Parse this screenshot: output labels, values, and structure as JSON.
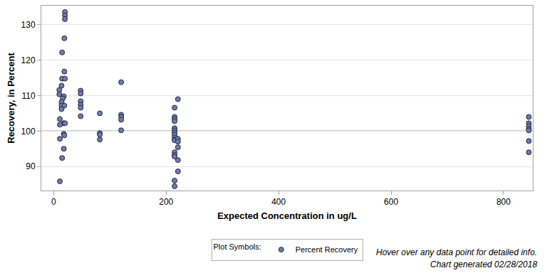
{
  "chart_data": {
    "type": "scatter",
    "x_label": "Expected Concentration in ug/L",
    "y_label": "Recovery, in Percent",
    "xlim": [
      -22,
      852
    ],
    "ylim": [
      83.2,
      135.4
    ],
    "xticks": [
      0,
      200,
      400,
      600,
      800
    ],
    "yticks": [
      90,
      100,
      110,
      120,
      130
    ],
    "grid": "y",
    "reference_line": 100,
    "legend": "bottom",
    "legend_title": "Plot Symbols:",
    "annotations": [
      "Hover over any data point for detailed info.",
      "Chart generated 02/28/2018"
    ],
    "series": [
      {
        "name": "Percent Recovery",
        "color": "#6b7bb0",
        "marker": "circle",
        "x": [
          20,
          20,
          20,
          19,
          15,
          19,
          15,
          20,
          14,
          10,
          10,
          18,
          16,
          14,
          14,
          19,
          14,
          11,
          18,
          20,
          11,
          18,
          19,
          11,
          18,
          15,
          11,
          48,
          48,
          48,
          48,
          48,
          48,
          82,
          82,
          82,
          82,
          120,
          120,
          120,
          120,
          120,
          215,
          215,
          215,
          215,
          215,
          215,
          215,
          215,
          215,
          215,
          215,
          215,
          215,
          215,
          215,
          215,
          221,
          221,
          221,
          221,
          221,
          221,
          845,
          845,
          845,
          845,
          845,
          845,
          845
        ],
        "values": [
          133.6,
          132.6,
          131.6,
          126.2,
          122.2,
          116.8,
          114.8,
          114.8,
          112.8,
          111.6,
          110.4,
          109.8,
          109.2,
          108.2,
          107.2,
          107.2,
          106.2,
          103.4,
          102.2,
          102.2,
          101.8,
          99.2,
          98.8,
          97.8,
          95.0,
          92.4,
          85.8,
          111.4,
          110.6,
          108.4,
          107.4,
          106.6,
          104.2,
          105.0,
          99.4,
          99.0,
          97.6,
          113.8,
          104.6,
          104.0,
          103.2,
          100.2,
          106.6,
          104.0,
          103.4,
          102.8,
          100.8,
          100.2,
          99.6,
          99.0,
          98.2,
          97.6,
          97.4,
          94.0,
          93.2,
          92.8,
          86.0,
          84.4,
          109.0,
          97.8,
          97.0,
          95.4,
          91.8,
          88.6,
          104.0,
          102.2,
          101.4,
          100.6,
          100.2,
          97.2,
          94.0
        ]
      }
    ]
  }
}
